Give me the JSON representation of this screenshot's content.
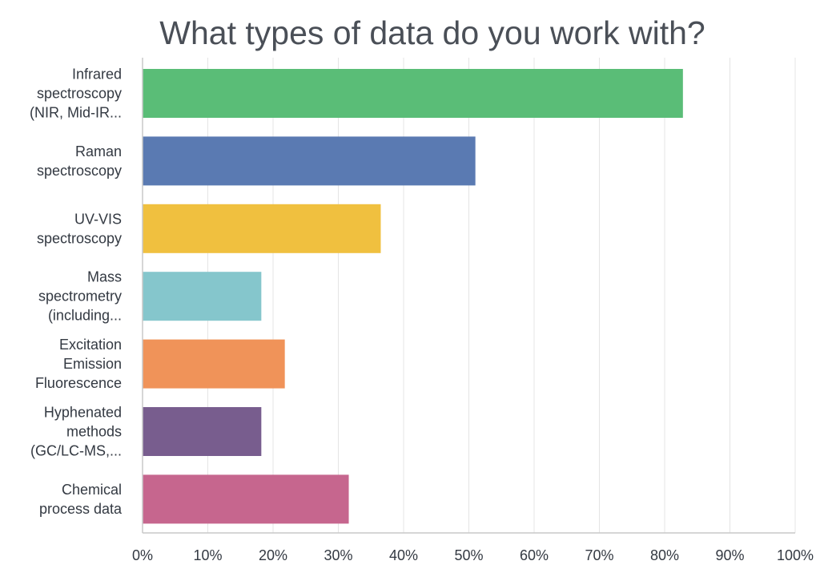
{
  "chart_data": {
    "type": "bar",
    "orientation": "horizontal",
    "title": "What types of data do you work with?",
    "xlabel": "",
    "ylabel": "",
    "xlim": [
      0,
      100
    ],
    "x_unit": "%",
    "grid": true,
    "legend": "none",
    "categories": [
      [
        "Infrared",
        "spectroscopy",
        "(NIR, Mid-IR..."
      ],
      [
        "Raman",
        "spectroscopy"
      ],
      [
        "UV-VIS",
        "spectroscopy"
      ],
      [
        "Mass",
        "spectrometry",
        "(including..."
      ],
      [
        "Excitation",
        "Emission",
        "Fluorescence"
      ],
      [
        "Hyphenated",
        "methods",
        "(GC/LC-MS,..."
      ],
      [
        "Chemical",
        "process data"
      ]
    ],
    "values": [
      82.8,
      51.0,
      36.5,
      18.2,
      21.8,
      18.2,
      31.6
    ],
    "colors": [
      "#5abd77",
      "#5a7ab2",
      "#f0c03f",
      "#85c6cc",
      "#f09359",
      "#785d8e",
      "#c6668e"
    ],
    "x_ticks": [
      0,
      10,
      20,
      30,
      40,
      50,
      60,
      70,
      80,
      90,
      100
    ],
    "x_tick_labels": [
      "0%",
      "10%",
      "20%",
      "30%",
      "40%",
      "50%",
      "60%",
      "70%",
      "80%",
      "90%",
      "100%"
    ]
  }
}
